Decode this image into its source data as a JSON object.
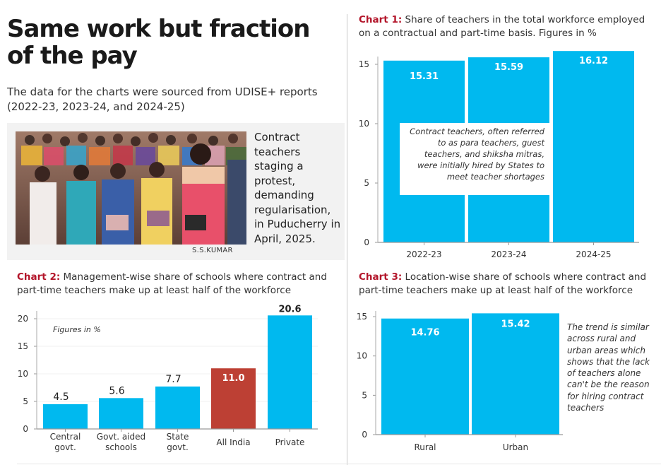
{
  "header": {
    "title": "Same work but fraction of the pay",
    "subtitle": "The data for the charts were sourced from UDISE+ reports (2022-23, 2023-24, and 2024-25)"
  },
  "photo": {
    "description": "crowd-of-contract-teachers-protesting-photo",
    "caption": "Contract teachers staging a protest, demanding regularisation, in Puducherry in April, 2025.",
    "credit": "S.S.KUMAR"
  },
  "colors": {
    "bar": "#00b9ef",
    "highlight_bar": "#bd4034",
    "chart_label": "#b3152a"
  },
  "chart_data": [
    {
      "id": "chart1",
      "type": "bar",
      "label": "Chart 1:",
      "title": "Share of teachers in the total workforce employed on a contractual and part-time basis. Figures in %",
      "categories": [
        "2022-23",
        "2023-24",
        "2024-25"
      ],
      "values": [
        15.31,
        15.59,
        16.12
      ],
      "value_labels": [
        "15.31",
        "15.59",
        "16.12"
      ],
      "xlabel": "",
      "ylabel": "",
      "ylim": [
        0,
        16.12
      ],
      "yticks": [
        0,
        5,
        10,
        15
      ],
      "grid": false,
      "annotation": "Contract teachers, often referred to as para teachers, guest teachers, and shiksha mitras, were initially hired by States to meet teacher shortages"
    },
    {
      "id": "chart2",
      "type": "bar",
      "label": "Chart 2:",
      "title": "Management-wise share of schools where contract and part-time teachers make up at least half of the workforce",
      "categories": [
        "Central govt.",
        "Govt. aided schools",
        "State govt.",
        "All India",
        "Private"
      ],
      "category_lines": [
        [
          "Central",
          "govt."
        ],
        [
          "Govt. aided",
          "schools"
        ],
        [
          "State",
          "govt."
        ],
        [
          "All India"
        ],
        [
          "Private"
        ]
      ],
      "values": [
        4.5,
        5.6,
        7.7,
        11.0,
        20.6
      ],
      "value_labels": [
        "4.5",
        "5.6",
        "7.7",
        "11.0",
        "20.6"
      ],
      "highlight": "All India",
      "xlabel": "",
      "ylabel": "",
      "ylim": [
        0,
        20.6
      ],
      "yticks": [
        0,
        5,
        10,
        15,
        20
      ],
      "grid": true,
      "annotation": "Figures in %"
    },
    {
      "id": "chart3",
      "type": "bar",
      "label": "Chart 3:",
      "title": "Location-wise share of schools where contract and part-time teachers make up at least half of the workforce",
      "categories": [
        "Rural",
        "Urban"
      ],
      "values": [
        14.76,
        15.42
      ],
      "value_labels": [
        "14.76",
        "15.42"
      ],
      "xlabel": "",
      "ylabel": "",
      "ylim": [
        0,
        15.42
      ],
      "yticks": [
        0,
        5,
        10,
        15
      ],
      "grid": false,
      "annotation": "The trend is similar across rural and urban areas which shows that the lack of teachers alone can't be the reason for hiring contract teachers"
    }
  ]
}
